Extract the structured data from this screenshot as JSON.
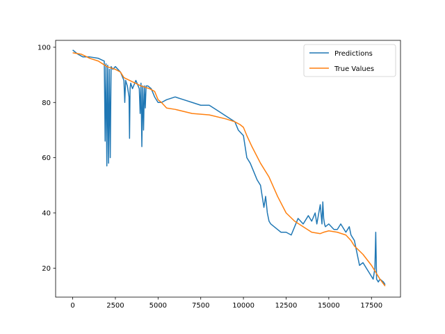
{
  "chart_data": {
    "type": "line",
    "title": "",
    "xlabel": "",
    "ylabel": "",
    "xlim": [
      -1000,
      19200
    ],
    "ylim": [
      9.5,
      102.5
    ],
    "x_ticks": [
      0,
      2500,
      5000,
      7500,
      10000,
      12500,
      15000,
      17500
    ],
    "x_tick_labels": [
      "0",
      "2500",
      "5000",
      "7500",
      "10000",
      "12500",
      "15000",
      "17500"
    ],
    "y_ticks": [
      20,
      40,
      60,
      80,
      100
    ],
    "y_tick_labels": [
      "20",
      "40",
      "60",
      "80",
      "100"
    ],
    "grid": false,
    "legend": {
      "position": "top-right",
      "entries": [
        "Predictions",
        "True Values"
      ]
    },
    "series": [
      {
        "name": "Predictions",
        "color": "#1f77b4",
        "x": [
          0,
          300,
          600,
          1000,
          1500,
          1850,
          1900,
          1950,
          2000,
          2050,
          2100,
          2150,
          2200,
          2250,
          2350,
          2500,
          2800,
          3000,
          3050,
          3100,
          3200,
          3300,
          3330,
          3360,
          3400,
          3500,
          3700,
          3900,
          3950,
          4000,
          4050,
          4100,
          4150,
          4200,
          4250,
          4300,
          4400,
          4600,
          4800,
          5000,
          5200,
          5500,
          6000,
          6500,
          7000,
          7500,
          8000,
          8500,
          9000,
          9500,
          9700,
          10000,
          10100,
          10200,
          10400,
          10600,
          10800,
          11000,
          11100,
          11200,
          11300,
          11400,
          11500,
          11600,
          11800,
          12000,
          12200,
          12500,
          12800,
          13000,
          13200,
          13500,
          13800,
          14000,
          14200,
          14300,
          14500,
          14600,
          14650,
          14700,
          14750,
          14800,
          15000,
          15300,
          15500,
          15700,
          16000,
          16200,
          16300,
          16500,
          16600,
          16700,
          16800,
          17000,
          17200,
          17400,
          17600,
          17700,
          17750,
          17800,
          17900,
          18000,
          18200,
          18300
        ],
        "values": [
          99,
          97.5,
          96.5,
          96.5,
          96,
          95,
          66,
          94,
          57,
          93.5,
          58,
          92,
          60,
          93,
          92,
          93,
          91,
          88,
          80,
          88,
          86,
          82,
          67,
          85,
          87,
          85,
          88,
          85,
          76,
          87,
          64,
          86,
          70,
          86,
          78,
          86,
          86,
          85,
          82,
          80,
          80,
          81,
          82,
          81,
          80,
          79,
          79,
          77,
          75,
          73,
          70,
          68,
          64,
          60,
          58,
          55,
          52,
          50,
          46,
          42,
          46,
          40,
          37,
          36,
          35,
          34,
          33,
          33,
          32,
          35,
          38,
          36,
          39,
          37,
          40,
          36,
          43,
          36,
          44,
          38,
          36,
          35,
          36,
          34,
          34,
          36,
          33,
          35,
          32,
          30,
          27,
          24,
          21,
          22,
          20,
          18,
          16,
          20,
          33,
          16,
          15,
          16,
          15,
          14
        ]
      },
      {
        "name": "True Values",
        "color": "#ff7f0e",
        "x": [
          0,
          500,
          1000,
          1500,
          2000,
          2500,
          2800,
          3000,
          3500,
          4000,
          4500,
          4800,
          5000,
          5200,
          5500,
          6000,
          7000,
          8000,
          9000,
          9500,
          9800,
          10000,
          10200,
          10500,
          11000,
          11500,
          12000,
          12500,
          13000,
          13500,
          14000,
          14500,
          14700,
          15000,
          15500,
          16000,
          16300,
          16500,
          17000,
          17500,
          18000,
          18300
        ],
        "values": [
          98,
          97.5,
          96,
          95,
          93,
          92,
          91,
          89,
          87.5,
          86,
          85,
          84,
          81,
          80,
          78,
          77.5,
          76,
          75.5,
          74,
          73,
          72,
          71,
          68,
          64,
          58,
          53,
          46,
          40,
          37,
          35,
          33,
          32.5,
          33,
          33.5,
          33,
          32,
          30,
          28,
          25,
          21,
          16,
          13.5
        ]
      }
    ]
  }
}
